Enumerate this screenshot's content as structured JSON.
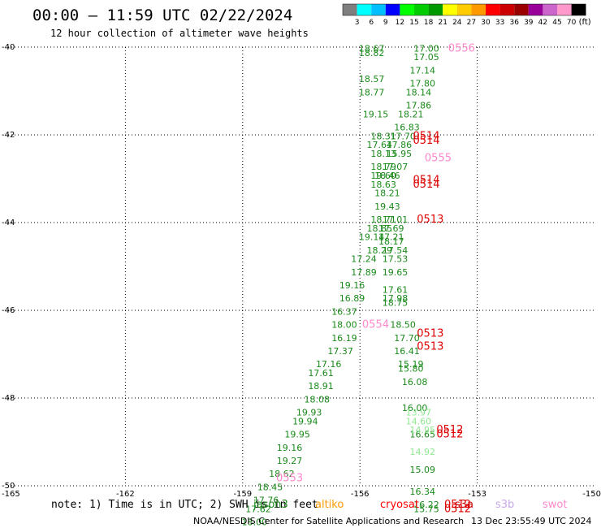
{
  "header": {
    "title": "00:00 – 11:59 UTC 02/22/2024",
    "subtitle": "12 hour collection of altimeter wave heights"
  },
  "colorbar": {
    "colors": [
      "#7f7f7f",
      "#00ffff",
      "#00bfff",
      "#0000ff",
      "#00ff00",
      "#00cc00",
      "#009900",
      "#ffff00",
      "#ffcc00",
      "#ff9900",
      "#ff0000",
      "#cc0000",
      "#990000",
      "#990099",
      "#cc66cc",
      "#ff99cc",
      "#000000"
    ],
    "tick_labels": [
      "3",
      "6",
      "9",
      "12",
      "15",
      "18",
      "21",
      "24",
      "27",
      "30",
      "33",
      "36",
      "39",
      "42",
      "45",
      "70"
    ],
    "unit_label": "(ft)"
  },
  "footer": {
    "note": "note: 1) Time is in UTC; 2) SWH is in feet",
    "satellites": [
      {
        "name": "jason3",
        "color": "#1a8a1a"
      },
      {
        "name": "altiko",
        "color": "#ff9900"
      },
      {
        "name": "cryosat",
        "color": "#ff0000"
      },
      {
        "name": "s3a",
        "color": "#cc0000"
      },
      {
        "name": "s3b",
        "color": "#c8a8e8"
      },
      {
        "name": "swot",
        "color": "#ff88cc"
      }
    ],
    "credit": "NOAA/NESDIS Center for Satellite Applications and Research",
    "timestamp": "13 Dec 23:55:49 UTC 2024"
  },
  "chart_data": {
    "type": "scatter",
    "xlim": [
      -165,
      -150
    ],
    "ylim": [
      -50,
      -40
    ],
    "x_ticks": [
      -165,
      -162,
      -159,
      -156,
      -153,
      -150
    ],
    "x_tick_labels": [
      "-165",
      "-162",
      "-159",
      "-156",
      "-153",
      "-150"
    ],
    "y_ticks": [
      -40,
      -42,
      -44,
      -46,
      -48,
      -50
    ],
    "y_tick_labels": [
      "-40",
      "-42",
      "-44",
      "-46",
      "-48",
      "-50"
    ],
    "grid": true,
    "series": [
      {
        "name": "jason3",
        "color": "#1a8a1a",
        "points": [
          {
            "x": -155.7,
            "y": -40.1,
            "label": "18.67"
          },
          {
            "x": -155.7,
            "y": -40.2,
            "label": "18.82"
          },
          {
            "x": -155.7,
            "y": -40.8,
            "label": "18.57"
          },
          {
            "x": -155.7,
            "y": -41.1,
            "label": "18.77"
          },
          {
            "x": -155.6,
            "y": -41.6,
            "label": "19.15"
          },
          {
            "x": -155.4,
            "y": -42.1,
            "label": "18.31"
          },
          {
            "x": -155.5,
            "y": -42.3,
            "label": "17.64"
          },
          {
            "x": -155.4,
            "y": -42.5,
            "label": "18.13"
          },
          {
            "x": -155.4,
            "y": -42.8,
            "label": "18.79"
          },
          {
            "x": -155.4,
            "y": -43.0,
            "label": "19.60"
          },
          {
            "x": -155.4,
            "y": -43.2,
            "label": "18.63"
          },
          {
            "x": -155.3,
            "y": -43.4,
            "label": "18.21"
          },
          {
            "x": -155.3,
            "y": -43.7,
            "label": "19.43"
          },
          {
            "x": -155.4,
            "y": -44.0,
            "label": "18.71"
          },
          {
            "x": -155.5,
            "y": -44.2,
            "label": "18.85"
          },
          {
            "x": -155.7,
            "y": -44.4,
            "label": "19.14"
          },
          {
            "x": -155.5,
            "y": -44.7,
            "label": "18.29"
          },
          {
            "x": -155.9,
            "y": -44.9,
            "label": "17.24"
          },
          {
            "x": -155.9,
            "y": -45.2,
            "label": "17.89"
          },
          {
            "x": -156.2,
            "y": -45.5,
            "label": "19.16"
          },
          {
            "x": -156.2,
            "y": -45.8,
            "label": "16.89"
          },
          {
            "x": -156.4,
            "y": -46.1,
            "label": "16.37"
          },
          {
            "x": -156.4,
            "y": -46.4,
            "label": "18.00"
          },
          {
            "x": -156.4,
            "y": -46.7,
            "label": "16.19"
          },
          {
            "x": -156.5,
            "y": -47.0,
            "label": "17.37"
          },
          {
            "x": -156.8,
            "y": -47.3,
            "label": "17.16"
          },
          {
            "x": -157.0,
            "y": -47.5,
            "label": "17.61"
          },
          {
            "x": -157.0,
            "y": -47.8,
            "label": "18.91"
          },
          {
            "x": -157.1,
            "y": -48.1,
            "label": "18.08"
          },
          {
            "x": -157.3,
            "y": -48.4,
            "label": "19.93"
          },
          {
            "x": -157.4,
            "y": -48.6,
            "label": "19.94"
          },
          {
            "x": -157.6,
            "y": -48.9,
            "label": "19.95"
          },
          {
            "x": -157.8,
            "y": -49.2,
            "label": "19.16"
          },
          {
            "x": -157.8,
            "y": -49.5,
            "label": "19.27"
          },
          {
            "x": -158.0,
            "y": -49.8,
            "label": "18.62"
          },
          {
            "x": -158.3,
            "y": -50.1,
            "label": "18.45"
          },
          {
            "x": -158.4,
            "y": -50.4,
            "label": "17.76"
          },
          {
            "x": -158.6,
            "y": -50.6,
            "label": "17.62"
          },
          {
            "x": -158.7,
            "y": -50.9,
            "label": "18.00"
          },
          {
            "x": -154.3,
            "y": -40.1,
            "label": "17.00"
          },
          {
            "x": -154.3,
            "y": -40.3,
            "label": "17.05"
          },
          {
            "x": -154.4,
            "y": -40.6,
            "label": "17.14"
          },
          {
            "x": -154.4,
            "y": -40.9,
            "label": "17.80"
          },
          {
            "x": -154.5,
            "y": -41.1,
            "label": "18.14"
          },
          {
            "x": -154.5,
            "y": -41.4,
            "label": "17.86"
          },
          {
            "x": -154.7,
            "y": -41.6,
            "label": "18.21"
          },
          {
            "x": -154.8,
            "y": -41.9,
            "label": "16.83"
          },
          {
            "x": -154.9,
            "y": -42.1,
            "label": "17.70"
          },
          {
            "x": -155.0,
            "y": -42.3,
            "label": "17.86"
          },
          {
            "x": -155.0,
            "y": -42.5,
            "label": "15.95"
          },
          {
            "x": -155.1,
            "y": -42.8,
            "label": "17.07"
          },
          {
            "x": -155.3,
            "y": -43.0,
            "label": "18.46"
          },
          {
            "x": -155.1,
            "y": -44.0,
            "label": "17.01"
          },
          {
            "x": -155.2,
            "y": -44.2,
            "label": "17.69"
          },
          {
            "x": -155.2,
            "y": -44.4,
            "label": "17.21"
          },
          {
            "x": -155.2,
            "y": -44.5,
            "label": "18.17"
          },
          {
            "x": -155.1,
            "y": -44.7,
            "label": "17.54"
          },
          {
            "x": -155.1,
            "y": -44.9,
            "label": "17.53"
          },
          {
            "x": -155.1,
            "y": -45.2,
            "label": "19.65"
          },
          {
            "x": -155.1,
            "y": -45.6,
            "label": "17.61"
          },
          {
            "x": -155.1,
            "y": -45.8,
            "label": "17.98"
          },
          {
            "x": -155.1,
            "y": -45.9,
            "label": "18.75"
          },
          {
            "x": -154.9,
            "y": -46.4,
            "label": "18.50"
          },
          {
            "x": -154.8,
            "y": -46.7,
            "label": "17.70"
          },
          {
            "x": -154.8,
            "y": -47.0,
            "label": "16.41"
          },
          {
            "x": -154.7,
            "y": -47.3,
            "label": "15.19"
          },
          {
            "x": -154.7,
            "y": -47.4,
            "label": "15.80"
          },
          {
            "x": -154.6,
            "y": -47.7,
            "label": "16.08"
          },
          {
            "x": -154.6,
            "y": -48.3,
            "label": "16.00"
          },
          {
            "x": -154.4,
            "y": -48.9,
            "label": "16.65"
          },
          {
            "x": -154.4,
            "y": -49.7,
            "label": "15.09"
          },
          {
            "x": -154.4,
            "y": -50.2,
            "label": "16.34"
          },
          {
            "x": -154.3,
            "y": -50.5,
            "label": "16.22"
          },
          {
            "x": -154.3,
            "y": -50.6,
            "label": "15.75"
          }
        ]
      },
      {
        "name": "s3b",
        "color": "#90e890",
        "points": [
          {
            "x": -154.5,
            "y": -48.4,
            "label": "13.97"
          },
          {
            "x": -154.5,
            "y": -48.6,
            "label": "14.60"
          },
          {
            "x": -154.4,
            "y": -48.8,
            "label": "14.95"
          },
          {
            "x": -154.4,
            "y": -49.3,
            "label": "14.92"
          }
        ]
      },
      {
        "name": "s3a",
        "color": "#dd0000",
        "points": [
          {
            "x": -154.3,
            "y": -42.1,
            "label": "0514"
          },
          {
            "x": -154.3,
            "y": -42.2,
            "label": "0514"
          },
          {
            "x": -154.3,
            "y": -43.1,
            "label": "0514"
          },
          {
            "x": -154.3,
            "y": -43.2,
            "label": "0514"
          },
          {
            "x": -154.2,
            "y": -44.0,
            "label": "0513"
          },
          {
            "x": -154.2,
            "y": -46.6,
            "label": "0513"
          },
          {
            "x": -154.2,
            "y": -46.9,
            "label": "0513"
          },
          {
            "x": -153.7,
            "y": -48.8,
            "label": "0512"
          },
          {
            "x": -153.7,
            "y": -48.9,
            "label": "0512"
          },
          {
            "x": -153.5,
            "y": -50.5,
            "label": "0512"
          },
          {
            "x": -153.5,
            "y": -50.6,
            "label": "0512"
          }
        ]
      },
      {
        "name": "swot",
        "color": "#ff88cc",
        "points": [
          {
            "x": -153.4,
            "y": -40.1,
            "label": "0556"
          },
          {
            "x": -154.0,
            "y": -42.6,
            "label": "0555"
          },
          {
            "x": -155.6,
            "y": -46.4,
            "label": "0554"
          },
          {
            "x": -157.8,
            "y": -49.9,
            "label": "0553"
          }
        ]
      }
    ]
  }
}
